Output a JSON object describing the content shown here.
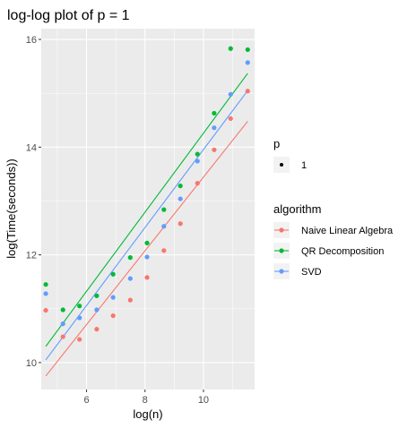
{
  "chart_data": {
    "type": "scatter",
    "title": "log-log plot of p = 1",
    "xlabel": "log(n)",
    "ylabel": "log(Time(seconds))",
    "xlim": [
      4.45,
      11.75
    ],
    "ylim": [
      9.5,
      16.2
    ],
    "x_ticks": [
      6,
      8,
      10
    ],
    "y_ticks": [
      10,
      12,
      14,
      16
    ],
    "grid": true,
    "x": [
      4.605,
      5.193,
      5.759,
      6.348,
      6.909,
      7.496,
      8.07,
      8.646,
      9.21,
      9.795,
      10.366,
      10.93,
      11.513
    ],
    "series": [
      {
        "name": "Naive Linear Algebra",
        "color": "#F8766D",
        "points": [
          10.97,
          10.48,
          10.43,
          10.62,
          10.87,
          11.16,
          11.58,
          12.08,
          12.58,
          13.33,
          13.95,
          14.53,
          15.04
        ],
        "fit": [
          9.75,
          14.48
        ]
      },
      {
        "name": "QR Decomposition",
        "color": "#00BA38",
        "points": [
          11.45,
          10.98,
          11.05,
          11.24,
          11.64,
          11.95,
          12.22,
          12.84,
          13.28,
          13.87,
          14.63,
          15.83,
          15.81
        ],
        "fit": [
          10.3,
          15.37
        ]
      },
      {
        "name": "SVD",
        "color": "#619CFF",
        "points": [
          11.28,
          10.72,
          10.83,
          10.98,
          11.21,
          11.56,
          11.96,
          12.53,
          13.04,
          13.74,
          14.36,
          14.98,
          15.57
        ],
        "fit": [
          10.05,
          15.05
        ]
      }
    ],
    "legend": {
      "p_title": "p",
      "p_value": "1",
      "algorithm_title": "algorithm",
      "entries": [
        "Naive Linear Algebra",
        "QR Decomposition",
        "SVD"
      ],
      "placement": "right"
    }
  }
}
